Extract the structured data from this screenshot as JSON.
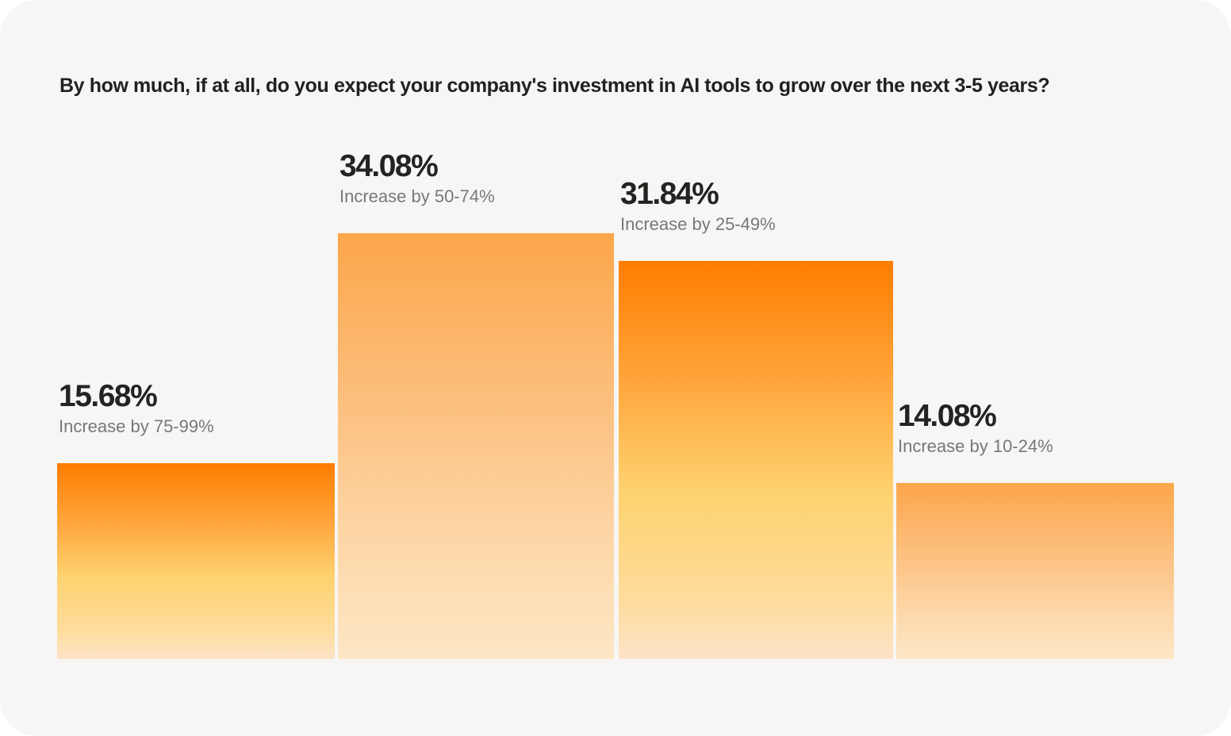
{
  "chart_data": {
    "type": "bar",
    "title": "By how much, if at all, do you expect your company's investment in AI tools to grow over the next 3-5 years?",
    "categories": [
      "Increase by 75-99%",
      "Increase by 50-74%",
      "Increase by 25-49%",
      "Increase by 10-24%"
    ],
    "values": [
      15.68,
      34.08,
      31.84,
      14.08
    ],
    "value_labels": [
      "15.68%",
      "34.08%",
      "31.84%",
      "14.08%"
    ],
    "xlabel": "",
    "ylabel": "",
    "ylim": [
      0,
      34.08
    ],
    "grid": false,
    "colors": {
      "strong_orange": "#ff7d00",
      "soft_orange": "#fca64a",
      "yellow": "#fed26f",
      "pale": "#fde3c8"
    }
  }
}
